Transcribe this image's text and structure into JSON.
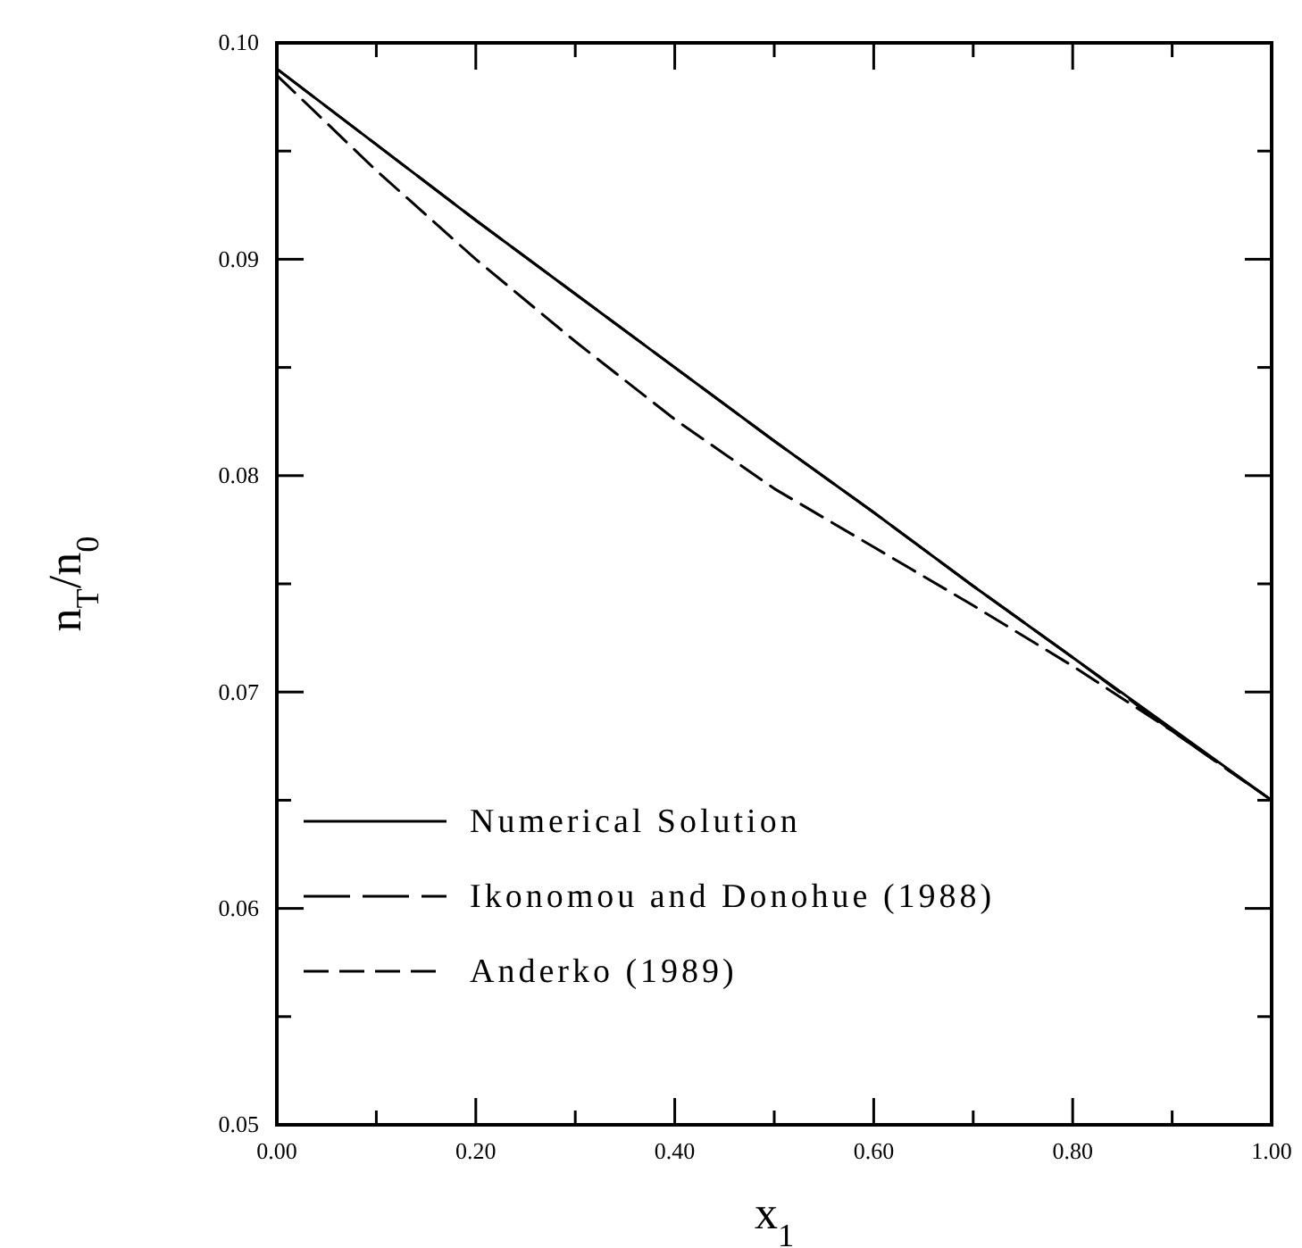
{
  "chart_data": {
    "type": "line",
    "xlabel": "x$_{1}$",
    "ylabel": "n$_{T}$/n$_{0}$",
    "xlim": [
      0,
      1
    ],
    "ylim": [
      0.05,
      0.1
    ],
    "xticks": [
      {
        "value": 0,
        "label": "0.00"
      },
      {
        "value": 0.1,
        "label": null
      },
      {
        "value": 0.2,
        "label": "0.20"
      },
      {
        "value": 0.3,
        "label": null
      },
      {
        "value": 0.4,
        "label": "0.40"
      },
      {
        "value": 0.5,
        "label": null
      },
      {
        "value": 0.6,
        "label": "0.60"
      },
      {
        "value": 0.7,
        "label": null
      },
      {
        "value": 0.8,
        "label": "0.80"
      },
      {
        "value": 0.9,
        "label": null
      },
      {
        "value": 1,
        "label": "1.00"
      }
    ],
    "yticks": [
      {
        "value": 0.05,
        "label": "0.05"
      },
      {
        "value": 0.055,
        "label": null
      },
      {
        "value": 0.06,
        "label": "0.06"
      },
      {
        "value": 0.065,
        "label": null
      },
      {
        "value": 0.07,
        "label": "0.07"
      },
      {
        "value": 0.075,
        "label": null
      },
      {
        "value": 0.08,
        "label": "0.08"
      },
      {
        "value": 0.085,
        "label": null
      },
      {
        "value": 0.09,
        "label": "0.09"
      },
      {
        "value": 0.095,
        "label": null
      },
      {
        "value": 0.1,
        "label": "0.10"
      }
    ],
    "x": [
      0,
      0.1,
      0.2,
      0.3,
      0.4,
      0.5,
      0.6,
      0.7,
      0.8,
      0.9,
      1
    ],
    "series": [
      {
        "name": "Numerical Solution",
        "color": "#000000",
        "line_style": "solid",
        "values": [
          0.0988,
          0.0953,
          0.0918,
          0.0884,
          0.085,
          0.0816,
          0.0783,
          0.0749,
          0.0716,
          0.0683,
          0.065
        ]
      },
      {
        "name": "Ikonomou and Donohue (1988)",
        "color": "#000000",
        "line_style": "dashed",
        "values": [
          0.0988,
          0.0953,
          0.0918,
          0.0884,
          0.085,
          0.0816,
          0.0783,
          0.0749,
          0.0716,
          0.0682,
          0.065
        ]
      },
      {
        "name": "Anderko (1989)",
        "color": "#000000",
        "line_style": "dashed",
        "values": [
          0.0985,
          0.0941,
          0.09,
          0.0862,
          0.0826,
          0.0794,
          0.0767,
          0.074,
          0.0712,
          0.0682,
          0.065
        ]
      }
    ],
    "legend": "bottom left",
    "grid": false,
    "marker": "none"
  }
}
